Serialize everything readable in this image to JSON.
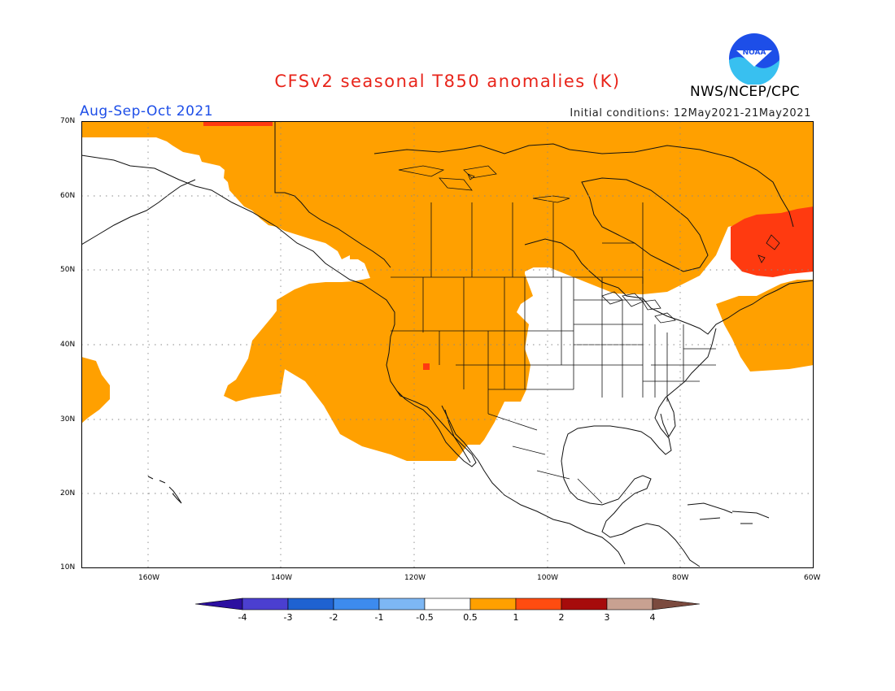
{
  "title": "CFSv2 seasonal T850 anomalies (K)",
  "season": "Aug-Sep-Oct 2021",
  "initial_conditions": "Initial conditions: 12May2021-21May2021",
  "agency": "NWS/NCEP/CPC",
  "logo_text": "NOAA",
  "map": {
    "projection": "lat-lon",
    "extent": {
      "lon": [
        -170,
        -60
      ],
      "lat": [
        10,
        70
      ]
    },
    "lat_labels": [
      "70N",
      "60N",
      "50N",
      "40N",
      "30N",
      "20N",
      "10N"
    ],
    "lon_labels": [
      "160W",
      "140W",
      "120W",
      "100W",
      "80W",
      "60W"
    ],
    "grid": "dotted",
    "anomaly_regions": [
      {
        "name": "northern-canada-and-alaska-warm",
        "category": "0.5 to 1"
      },
      {
        "name": "western-us-and-pacific-warm",
        "category": "0.5 to 1"
      },
      {
        "name": "northeast-us-atlantic-warm",
        "category": "0.5 to 1"
      },
      {
        "name": "hawaii-region-warm",
        "category": "0.5 to 1"
      },
      {
        "name": "quebec-labrador-warm",
        "category": "1 to 2"
      },
      {
        "name": "nevada-spot-warm",
        "category": "1 to 2"
      }
    ]
  },
  "colorbar": {
    "labels": [
      "-4",
      "-3",
      "-2",
      "-1",
      "-0.5",
      "0.5",
      "1",
      "2",
      "3",
      "4"
    ],
    "colors": [
      "#2c0fa0",
      "#4b3fd0",
      "#1f62d1",
      "#3d8bee",
      "#7db7f4",
      "#ffffff",
      "#ffa000",
      "#ff4c10",
      "#a60b0b",
      "#c8a191",
      "#7b4a3e"
    ]
  }
}
